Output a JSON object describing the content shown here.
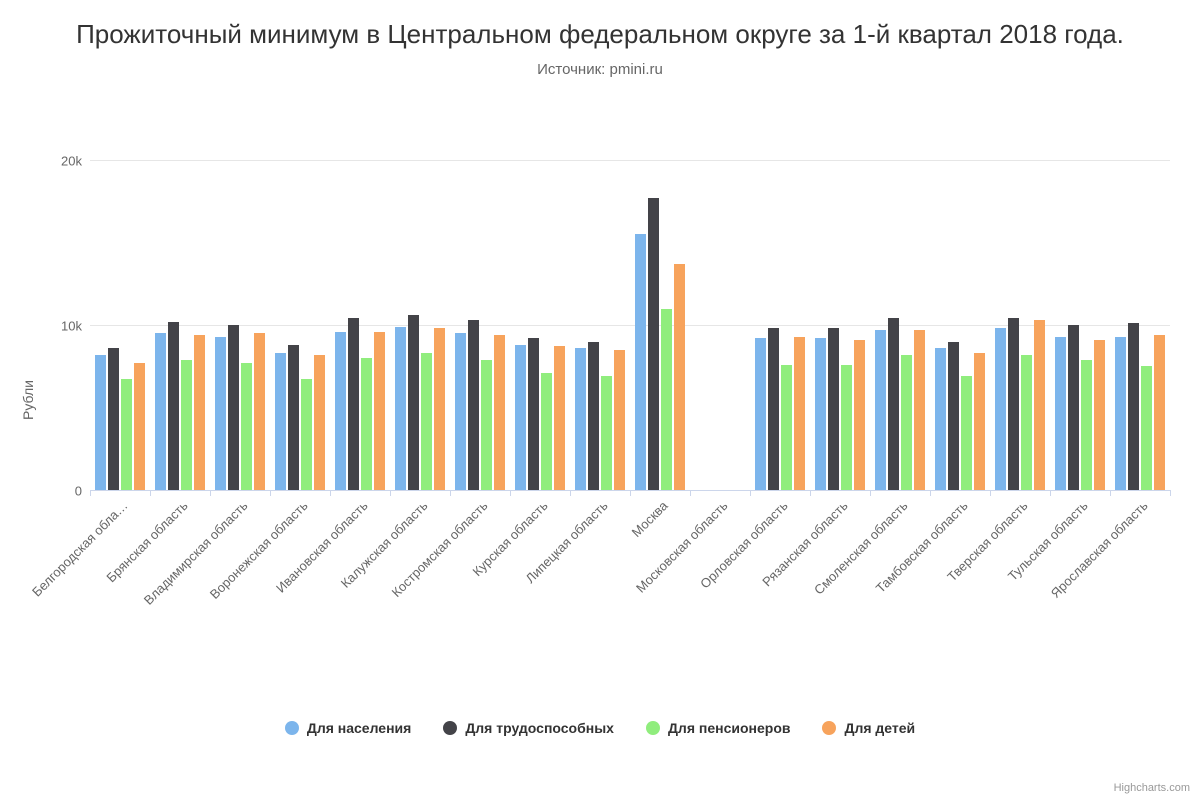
{
  "chart": {
    "type": "bar",
    "title": "Прожиточный минимум в Центральном федеральном округе за 1-й квартал 2018 года.",
    "subtitle": "Источник: pmini.ru",
    "yaxis_title": "Рубли",
    "credits": "Highcharts.com",
    "background_color": "#ffffff",
    "grid_color": "#e6e6e6",
    "axis_line_color": "#ccd6eb",
    "text_color": "#333333",
    "label_color": "#666666",
    "title_fontsize": 26,
    "subtitle_fontsize": 15,
    "axis_label_fontsize": 13,
    "legend_fontsize": 14,
    "ymin": 0,
    "ymax": 20000,
    "ytick_step": 10000,
    "yticks": [
      {
        "value": 0,
        "label": "0"
      },
      {
        "value": 10000,
        "label": "10k"
      },
      {
        "value": 20000,
        "label": "20k"
      }
    ],
    "categories": [
      "Белгородская обла…",
      "Брянская область",
      "Владимирская область",
      "Воронежская область",
      "Ивановская область",
      "Калужская область",
      "Костромская область",
      "Курская область",
      "Липецкая область",
      "Москва",
      "Московская область",
      "Орловская область",
      "Рязанская область",
      "Смоленская область",
      "Тамбовская область",
      "Тверская область",
      "Тульская область",
      "Ярославская область"
    ],
    "series": [
      {
        "name": "Для населения",
        "color": "#7cb5ec",
        "data": [
          8200,
          9500,
          9300,
          8300,
          9600,
          9900,
          9500,
          8800,
          8600,
          15500,
          null,
          9200,
          9200,
          9700,
          8600,
          9800,
          9300,
          9300
        ]
      },
      {
        "name": "Для трудоспособных",
        "color": "#434348",
        "data": [
          8600,
          10200,
          10000,
          8800,
          10400,
          10600,
          10300,
          9200,
          9000,
          17700,
          null,
          9800,
          9800,
          10400,
          9000,
          10400,
          10000,
          10100
        ]
      },
      {
        "name": "Для пенсионеров",
        "color": "#90ed7d",
        "data": [
          6700,
          7900,
          7700,
          6700,
          8000,
          8300,
          7900,
          7100,
          6900,
          11000,
          null,
          7600,
          7600,
          8200,
          6900,
          8200,
          7900,
          7500
        ]
      },
      {
        "name": "Для детей",
        "color": "#f7a35c",
        "data": [
          7700,
          9400,
          9500,
          8200,
          9600,
          9800,
          9400,
          8700,
          8500,
          13700,
          null,
          9300,
          9100,
          9700,
          8300,
          10300,
          9100,
          9400
        ]
      }
    ]
  }
}
